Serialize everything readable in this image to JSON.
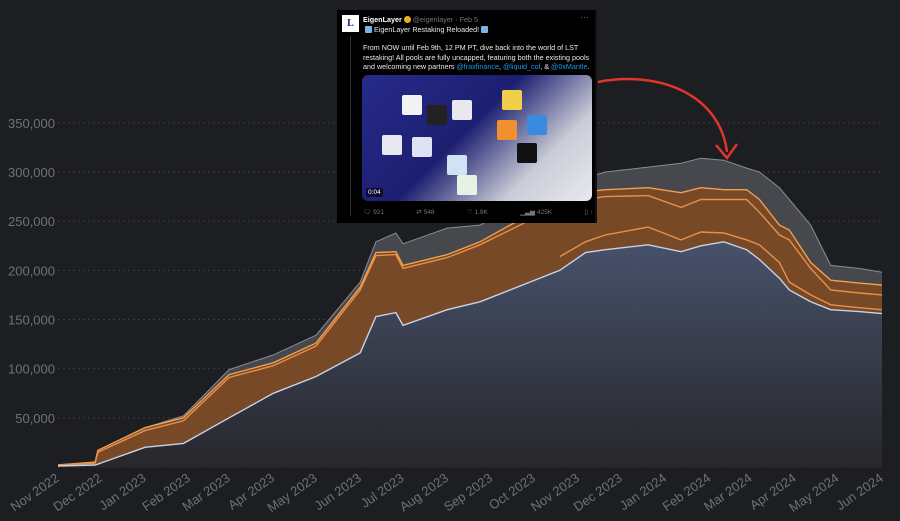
{
  "chart_data": {
    "type": "area",
    "title": "",
    "xlabel": "",
    "ylabel": "",
    "ylim": [
      0,
      370000
    ],
    "yticks": [
      50000,
      100000,
      150000,
      200000,
      250000,
      300000,
      350000
    ],
    "ytick_labels": [
      "50,000",
      "100,000",
      "150,000",
      "200,000",
      "250,000",
      "300,000",
      "350,000"
    ],
    "xtick_labels": [
      "Nov 2022",
      "Dec 2022",
      "Jan 2023",
      "Feb 2023",
      "Mar 2023",
      "Apr 2023",
      "May 2023",
      "Jun 2023",
      "Jul 2023",
      "Aug 2023",
      "Sep 2023",
      "Oct 2023",
      "Nov 2023",
      "Dec 2023",
      "Jan 2024",
      "Feb 2024",
      "Mar 2024",
      "Apr 2024",
      "May 2024",
      "Jun 2024"
    ],
    "xtick_dates": [
      "2022-11-01",
      "2022-12-01",
      "2023-01-01",
      "2023-02-01",
      "2023-03-01",
      "2023-04-01",
      "2023-05-01",
      "2023-06-01",
      "2023-07-01",
      "2023-08-01",
      "2023-09-01",
      "2023-10-01",
      "2023-11-01",
      "2023-12-01",
      "2024-01-01",
      "2024-02-01",
      "2024-03-01",
      "2024-04-01",
      "2024-05-01",
      "2024-06-01"
    ],
    "grid": true,
    "x": [
      "2022-11-01",
      "2022-11-27",
      "2022-11-29",
      "2023-01-01",
      "2023-01-28",
      "2023-03-01",
      "2023-04-01",
      "2023-05-01",
      "2023-06-01",
      "2023-06-12",
      "2023-06-26",
      "2023-07-01",
      "2023-08-01",
      "2023-08-24",
      "2023-10-19",
      "2023-11-06",
      "2023-11-20",
      "2023-12-20",
      "2024-01-12",
      "2024-01-26",
      "2024-02-11",
      "2024-02-27",
      "2024-03-07",
      "2024-03-21",
      "2024-03-28",
      "2024-04-12",
      "2024-04-26",
      "2024-05-16",
      "2024-06-01"
    ],
    "series": [
      {
        "color": "#8a8c92",
        "fill": "#4a4b50",
        "values": [
          2000,
          5000,
          17000,
          40000,
          52000,
          99000,
          114000,
          134000,
          188000,
          229000,
          238000,
          227000,
          243000,
          246000,
          290000,
          294000,
          300000,
          305000,
          309000,
          314000,
          312000,
          304000,
          300000,
          284000,
          272000,
          246000,
          205000,
          202000,
          198000
        ]
      },
      {
        "color": "#f0a050",
        "fill": "#7a4a24",
        "values": [
          2000,
          5000,
          17000,
          40000,
          50000,
          94000,
          106000,
          126000,
          183000,
          218000,
          219000,
          205000,
          216000,
          229000,
          274000,
          280000,
          282000,
          284000,
          279000,
          284000,
          282000,
          282000,
          272000,
          246000,
          241000,
          208000,
          190000,
          187000,
          185000
        ]
      },
      {
        "color": "#e8904a",
        "fill": null,
        "values": [
          2000,
          4000,
          15000,
          37000,
          47000,
          91000,
          103000,
          123000,
          180000,
          215000,
          216000,
          202000,
          213000,
          226000,
          266000,
          272000,
          275000,
          276000,
          264000,
          272000,
          272000,
          272000,
          259000,
          236000,
          231000,
          202000,
          180000,
          177000,
          175000
        ]
      },
      {
        "color": "#e8904a",
        "fill": null,
        "values": [
          null,
          null,
          null,
          null,
          null,
          null,
          null,
          null,
          null,
          null,
          null,
          null,
          null,
          null,
          214000,
          229000,
          236000,
          244000,
          231000,
          239000,
          238000,
          231000,
          226000,
          208000,
          188000,
          175000,
          165000,
          162000,
          160000
        ]
      },
      {
        "color": "#c8d2e6",
        "fill": "#3a4760",
        "values": [
          1000,
          2000,
          3000,
          20000,
          24000,
          50000,
          75000,
          92000,
          116000,
          153000,
          157000,
          144000,
          160000,
          168000,
          200000,
          218000,
          221000,
          226000,
          219000,
          225000,
          229000,
          221000,
          211000,
          192000,
          180000,
          168000,
          160000,
          158000,
          156000
        ]
      }
    ]
  },
  "tweet": {
    "avatar_text": "L",
    "name": "EigenLayer",
    "handle_time": "@eigenlayer · Feb 5",
    "more": "···",
    "title": "EigenLayer Restaking Reloaded!",
    "body": "From NOW until Feb 9th, 12 PM PT, dive back into the world of LST restaking! All pools are fully uncapped, featuring both the existing pools and welcoming new partners ",
    "mentions": [
      "@fraxfinance",
      "@liquid_col",
      "@0xMantle"
    ],
    "sep1": ", ",
    "sep2": ", & ",
    "end": ".",
    "video_time": "0:04",
    "replies": "921",
    "reposts": "548",
    "likes": "1.9K",
    "views": "425K"
  },
  "annotation": {
    "arrow_color": "#e0352b"
  }
}
